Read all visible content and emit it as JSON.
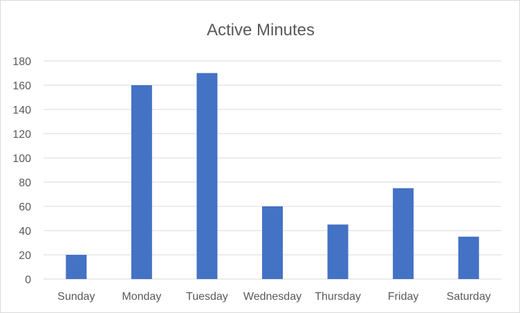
{
  "chart_data": {
    "type": "bar",
    "title": "Active Minutes",
    "xlabel": "",
    "ylabel": "",
    "categories": [
      "Sunday",
      "Monday",
      "Tuesday",
      "Wednesday",
      "Thursday",
      "Friday",
      "Saturday"
    ],
    "values": [
      20,
      160,
      170,
      60,
      45,
      75,
      35
    ],
    "ylim": [
      0,
      180
    ],
    "yticks": [
      0,
      20,
      40,
      60,
      80,
      100,
      120,
      140,
      160,
      180
    ],
    "grid": true,
    "legend": "none",
    "bar_color": "#4472C4"
  }
}
